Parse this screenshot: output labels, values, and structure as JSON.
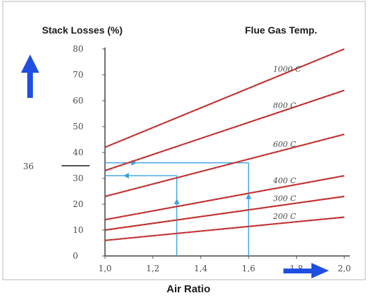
{
  "chart_data": {
    "type": "line",
    "title": "Flue Gas Temp.",
    "ylabel": "Stack Losses (%)",
    "xlabel": "Air Ratio",
    "xlim": [
      1.0,
      2.0
    ],
    "ylim": [
      0,
      80
    ],
    "x_ticks": [
      "1,0",
      "1,2",
      "1,4",
      "1,6",
      "1,8",
      "2,0"
    ],
    "x_tick_values": [
      1.0,
      1.2,
      1.4,
      1.6,
      1.8,
      2.0
    ],
    "y_ticks": [
      "0",
      "10",
      "20",
      "30",
      "40",
      "50",
      "60",
      "70",
      "80"
    ],
    "y_tick_values": [
      0,
      10,
      20,
      30,
      40,
      50,
      60,
      70,
      80
    ],
    "grid": false,
    "line_color": "#cc3a3a",
    "arrow_color": "#1f4fe0",
    "guide_color": "#3aa0e6",
    "series": [
      {
        "name": "1000 C",
        "x": [
          1.0,
          2.0
        ],
        "y": [
          42,
          80
        ]
      },
      {
        "name": "800 C",
        "x": [
          1.0,
          2.0
        ],
        "y": [
          33,
          64
        ]
      },
      {
        "name": "600 C",
        "x": [
          1.0,
          2.0
        ],
        "y": [
          23,
          47
        ]
      },
      {
        "name": "400 C",
        "x": [
          1.0,
          2.0
        ],
        "y": [
          14,
          31
        ]
      },
      {
        "name": "300 C",
        "x": [
          1.0,
          2.0
        ],
        "y": [
          10,
          23
        ]
      },
      {
        "name": "200 C",
        "x": [
          1.0,
          2.0
        ],
        "y": [
          6,
          15
        ]
      }
    ],
    "annotations": {
      "marker_value": "36",
      "marker_y": 36,
      "reference_y": 31,
      "guide_x_left": 1.3,
      "guide_x_right": 1.6
    }
  }
}
